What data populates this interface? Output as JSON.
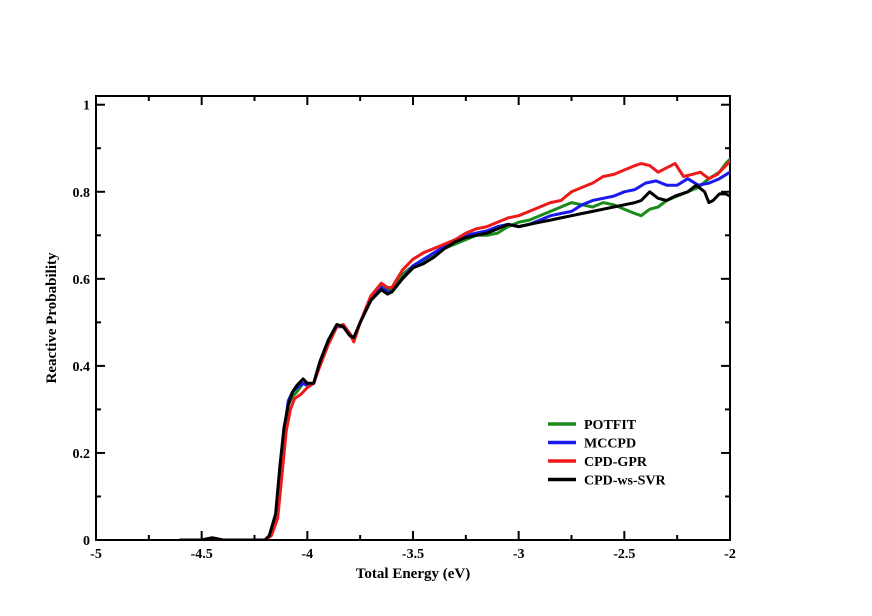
{
  "chart_data": {
    "type": "line",
    "title": "",
    "xlabel": "Total Energy (eV)",
    "ylabel": "Reactive Probability",
    "xlim": [
      -5,
      -2
    ],
    "ylim": [
      0,
      1.02
    ],
    "x_ticks": [
      -5,
      -4.5,
      -4,
      -3.5,
      -3,
      -2.5,
      -2
    ],
    "x_tick_labels": [
      "-5",
      "-4.5",
      "-4",
      "-3.5",
      "-3",
      "-2.5",
      "-2"
    ],
    "y_ticks": [
      0,
      0.2,
      0.4,
      0.6,
      0.8,
      1
    ],
    "y_tick_labels": [
      "0",
      "0.2",
      "0.4",
      "0.6",
      "0.8",
      "1"
    ],
    "grid": false,
    "legend_position": "bottom-right",
    "series": [
      {
        "name": "POTFIT",
        "color": "#1a8a1a",
        "points": [
          [
            -4.6,
            0.0
          ],
          [
            -4.5,
            0.0
          ],
          [
            -4.45,
            0.005
          ],
          [
            -4.4,
            0.0
          ],
          [
            -4.2,
            0.0
          ],
          [
            -4.18,
            0.01
          ],
          [
            -4.15,
            0.05
          ],
          [
            -4.13,
            0.15
          ],
          [
            -4.11,
            0.25
          ],
          [
            -4.09,
            0.31
          ],
          [
            -4.07,
            0.33
          ],
          [
            -4.05,
            0.34
          ],
          [
            -4.02,
            0.36
          ],
          [
            -4.0,
            0.355
          ],
          [
            -3.97,
            0.36
          ],
          [
            -3.94,
            0.41
          ],
          [
            -3.9,
            0.46
          ],
          [
            -3.86,
            0.495
          ],
          [
            -3.83,
            0.49
          ],
          [
            -3.8,
            0.47
          ],
          [
            -3.78,
            0.46
          ],
          [
            -3.75,
            0.5
          ],
          [
            -3.7,
            0.55
          ],
          [
            -3.65,
            0.585
          ],
          [
            -3.62,
            0.575
          ],
          [
            -3.6,
            0.575
          ],
          [
            -3.55,
            0.61
          ],
          [
            -3.5,
            0.63
          ],
          [
            -3.45,
            0.64
          ],
          [
            -3.4,
            0.655
          ],
          [
            -3.35,
            0.67
          ],
          [
            -3.3,
            0.68
          ],
          [
            -3.25,
            0.69
          ],
          [
            -3.2,
            0.7
          ],
          [
            -3.15,
            0.7
          ],
          [
            -3.1,
            0.705
          ],
          [
            -3.05,
            0.72
          ],
          [
            -3.0,
            0.73
          ],
          [
            -2.95,
            0.735
          ],
          [
            -2.9,
            0.745
          ],
          [
            -2.85,
            0.755
          ],
          [
            -2.8,
            0.765
          ],
          [
            -2.75,
            0.775
          ],
          [
            -2.7,
            0.77
          ],
          [
            -2.65,
            0.765
          ],
          [
            -2.6,
            0.775
          ],
          [
            -2.55,
            0.77
          ],
          [
            -2.5,
            0.76
          ],
          [
            -2.45,
            0.75
          ],
          [
            -2.42,
            0.745
          ],
          [
            -2.38,
            0.76
          ],
          [
            -2.34,
            0.765
          ],
          [
            -2.3,
            0.78
          ],
          [
            -2.25,
            0.79
          ],
          [
            -2.2,
            0.8
          ],
          [
            -2.15,
            0.81
          ],
          [
            -2.1,
            0.83
          ],
          [
            -2.05,
            0.845
          ],
          [
            -2.02,
            0.865
          ],
          [
            -2.0,
            0.875
          ]
        ]
      },
      {
        "name": "MCCPD",
        "color": "#1a1aee",
        "points": [
          [
            -4.6,
            0.0
          ],
          [
            -4.5,
            0.0
          ],
          [
            -4.45,
            0.005
          ],
          [
            -4.4,
            0.0
          ],
          [
            -4.2,
            0.0
          ],
          [
            -4.18,
            0.01
          ],
          [
            -4.15,
            0.05
          ],
          [
            -4.13,
            0.15
          ],
          [
            -4.11,
            0.25
          ],
          [
            -4.09,
            0.32
          ],
          [
            -4.07,
            0.34
          ],
          [
            -4.05,
            0.35
          ],
          [
            -4.02,
            0.36
          ],
          [
            -4.0,
            0.355
          ],
          [
            -3.97,
            0.36
          ],
          [
            -3.94,
            0.41
          ],
          [
            -3.9,
            0.46
          ],
          [
            -3.86,
            0.49
          ],
          [
            -3.83,
            0.49
          ],
          [
            -3.8,
            0.475
          ],
          [
            -3.78,
            0.46
          ],
          [
            -3.75,
            0.5
          ],
          [
            -3.7,
            0.55
          ],
          [
            -3.65,
            0.58
          ],
          [
            -3.62,
            0.57
          ],
          [
            -3.6,
            0.57
          ],
          [
            -3.55,
            0.6
          ],
          [
            -3.5,
            0.63
          ],
          [
            -3.45,
            0.645
          ],
          [
            -3.4,
            0.66
          ],
          [
            -3.35,
            0.675
          ],
          [
            -3.3,
            0.69
          ],
          [
            -3.25,
            0.7
          ],
          [
            -3.2,
            0.705
          ],
          [
            -3.15,
            0.71
          ],
          [
            -3.1,
            0.72
          ],
          [
            -3.05,
            0.725
          ],
          [
            -3.0,
            0.72
          ],
          [
            -2.95,
            0.725
          ],
          [
            -2.9,
            0.735
          ],
          [
            -2.85,
            0.745
          ],
          [
            -2.8,
            0.75
          ],
          [
            -2.75,
            0.755
          ],
          [
            -2.7,
            0.77
          ],
          [
            -2.65,
            0.78
          ],
          [
            -2.6,
            0.785
          ],
          [
            -2.55,
            0.79
          ],
          [
            -2.5,
            0.8
          ],
          [
            -2.45,
            0.805
          ],
          [
            -2.4,
            0.82
          ],
          [
            -2.35,
            0.825
          ],
          [
            -2.3,
            0.815
          ],
          [
            -2.25,
            0.815
          ],
          [
            -2.2,
            0.83
          ],
          [
            -2.15,
            0.815
          ],
          [
            -2.1,
            0.82
          ],
          [
            -2.05,
            0.83
          ],
          [
            -2.0,
            0.845
          ]
        ]
      },
      {
        "name": "CPD-GPR",
        "color": "#ee1a1a",
        "points": [
          [
            -4.6,
            0.0
          ],
          [
            -4.5,
            0.0
          ],
          [
            -4.45,
            0.005
          ],
          [
            -4.4,
            0.0
          ],
          [
            -4.2,
            0.0
          ],
          [
            -4.17,
            0.01
          ],
          [
            -4.14,
            0.05
          ],
          [
            -4.12,
            0.15
          ],
          [
            -4.1,
            0.25
          ],
          [
            -4.08,
            0.3
          ],
          [
            -4.06,
            0.325
          ],
          [
            -4.03,
            0.335
          ],
          [
            -4.0,
            0.35
          ],
          [
            -3.97,
            0.36
          ],
          [
            -3.94,
            0.4
          ],
          [
            -3.9,
            0.45
          ],
          [
            -3.86,
            0.49
          ],
          [
            -3.83,
            0.495
          ],
          [
            -3.8,
            0.475
          ],
          [
            -3.78,
            0.455
          ],
          [
            -3.75,
            0.5
          ],
          [
            -3.7,
            0.56
          ],
          [
            -3.65,
            0.59
          ],
          [
            -3.62,
            0.58
          ],
          [
            -3.6,
            0.58
          ],
          [
            -3.55,
            0.62
          ],
          [
            -3.5,
            0.645
          ],
          [
            -3.45,
            0.66
          ],
          [
            -3.4,
            0.67
          ],
          [
            -3.35,
            0.68
          ],
          [
            -3.3,
            0.69
          ],
          [
            -3.25,
            0.705
          ],
          [
            -3.2,
            0.715
          ],
          [
            -3.15,
            0.72
          ],
          [
            -3.1,
            0.73
          ],
          [
            -3.05,
            0.74
          ],
          [
            -3.0,
            0.745
          ],
          [
            -2.95,
            0.755
          ],
          [
            -2.9,
            0.765
          ],
          [
            -2.85,
            0.775
          ],
          [
            -2.8,
            0.78
          ],
          [
            -2.75,
            0.8
          ],
          [
            -2.7,
            0.81
          ],
          [
            -2.65,
            0.82
          ],
          [
            -2.6,
            0.835
          ],
          [
            -2.55,
            0.84
          ],
          [
            -2.5,
            0.85
          ],
          [
            -2.45,
            0.86
          ],
          [
            -2.42,
            0.865
          ],
          [
            -2.38,
            0.86
          ],
          [
            -2.34,
            0.845
          ],
          [
            -2.3,
            0.855
          ],
          [
            -2.26,
            0.865
          ],
          [
            -2.22,
            0.835
          ],
          [
            -2.18,
            0.84
          ],
          [
            -2.14,
            0.845
          ],
          [
            -2.1,
            0.83
          ],
          [
            -2.06,
            0.84
          ],
          [
            -2.03,
            0.855
          ],
          [
            -2.0,
            0.87
          ]
        ]
      },
      {
        "name": "CPD-ws-SVR",
        "color": "#000000",
        "points": [
          [
            -4.6,
            0.0
          ],
          [
            -4.5,
            0.0
          ],
          [
            -4.45,
            0.005
          ],
          [
            -4.4,
            0.0
          ],
          [
            -4.2,
            0.0
          ],
          [
            -4.18,
            0.01
          ],
          [
            -4.15,
            0.06
          ],
          [
            -4.13,
            0.17
          ],
          [
            -4.11,
            0.26
          ],
          [
            -4.09,
            0.31
          ],
          [
            -4.07,
            0.34
          ],
          [
            -4.05,
            0.355
          ],
          [
            -4.02,
            0.37
          ],
          [
            -4.0,
            0.36
          ],
          [
            -3.97,
            0.36
          ],
          [
            -3.94,
            0.41
          ],
          [
            -3.9,
            0.46
          ],
          [
            -3.86,
            0.495
          ],
          [
            -3.83,
            0.49
          ],
          [
            -3.8,
            0.47
          ],
          [
            -3.78,
            0.465
          ],
          [
            -3.75,
            0.5
          ],
          [
            -3.7,
            0.55
          ],
          [
            -3.65,
            0.575
          ],
          [
            -3.62,
            0.565
          ],
          [
            -3.6,
            0.57
          ],
          [
            -3.55,
            0.6
          ],
          [
            -3.5,
            0.625
          ],
          [
            -3.45,
            0.635
          ],
          [
            -3.4,
            0.65
          ],
          [
            -3.35,
            0.67
          ],
          [
            -3.3,
            0.685
          ],
          [
            -3.25,
            0.695
          ],
          [
            -3.2,
            0.7
          ],
          [
            -3.15,
            0.705
          ],
          [
            -3.1,
            0.715
          ],
          [
            -3.05,
            0.725
          ],
          [
            -3.0,
            0.72
          ],
          [
            -2.95,
            0.725
          ],
          [
            -2.9,
            0.73
          ],
          [
            -2.85,
            0.735
          ],
          [
            -2.8,
            0.74
          ],
          [
            -2.75,
            0.745
          ],
          [
            -2.7,
            0.75
          ],
          [
            -2.65,
            0.755
          ],
          [
            -2.6,
            0.76
          ],
          [
            -2.55,
            0.765
          ],
          [
            -2.5,
            0.77
          ],
          [
            -2.45,
            0.775
          ],
          [
            -2.42,
            0.78
          ],
          [
            -2.38,
            0.8
          ],
          [
            -2.34,
            0.785
          ],
          [
            -2.3,
            0.78
          ],
          [
            -2.26,
            0.79
          ],
          [
            -2.2,
            0.8
          ],
          [
            -2.16,
            0.815
          ],
          [
            -2.12,
            0.8
          ],
          [
            -2.1,
            0.775
          ],
          [
            -2.08,
            0.78
          ],
          [
            -2.05,
            0.795
          ],
          [
            -2.02,
            0.795
          ],
          [
            -2.0,
            0.79
          ]
        ]
      }
    ]
  }
}
